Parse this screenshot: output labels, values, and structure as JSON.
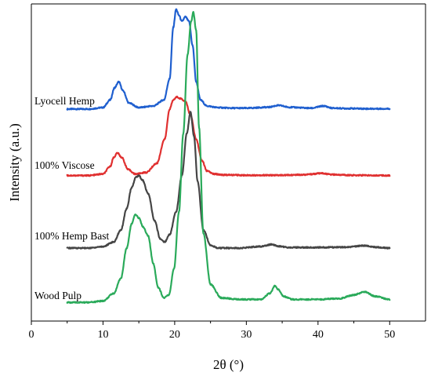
{
  "chart_data": {
    "type": "line",
    "title": "",
    "xlabel": "2θ (°)",
    "ylabel": "Intensity (a.u.)",
    "xlim": [
      0,
      55
    ],
    "xticks": [
      0,
      10,
      20,
      30,
      40,
      50
    ],
    "xtick_labels": [
      "0",
      "10",
      "20",
      "30",
      "40",
      "50"
    ],
    "yticks_shown": false,
    "grid": false,
    "legend": "labels placed beside each curve on the left",
    "series": [
      {
        "name": "Lyocell Hemp",
        "color": "#1f5fcf",
        "baseline": 0.66,
        "noise": 0.002,
        "x": [
          5,
          8,
          10,
          11,
          11.6,
          12.2,
          12.8,
          13.6,
          15,
          17,
          18.5,
          19.3,
          19.8,
          20.2,
          20.6,
          21,
          21.5,
          22,
          22.5,
          23,
          23.6,
          24.5,
          26,
          28,
          30,
          33,
          34.5,
          36,
          39,
          40.8,
          42,
          44,
          47,
          50
        ],
        "y": [
          0.66,
          0.66,
          0.665,
          0.69,
          0.73,
          0.75,
          0.72,
          0.68,
          0.665,
          0.67,
          0.69,
          0.76,
          0.93,
          0.99,
          0.97,
          0.95,
          0.965,
          0.95,
          0.87,
          0.75,
          0.69,
          0.67,
          0.665,
          0.663,
          0.663,
          0.666,
          0.672,
          0.666,
          0.663,
          0.67,
          0.663,
          0.662,
          0.661,
          0.661
        ]
      },
      {
        "name": "100% Viscose",
        "color": "#e03030",
        "baseline": 0.44,
        "noise": 0.002,
        "x": [
          5,
          8,
          10,
          11,
          11.5,
          12,
          12.6,
          13.5,
          14.5,
          16,
          17.5,
          18.6,
          19.3,
          19.8,
          20.3,
          20.8,
          21.5,
          22.2,
          23,
          23.8,
          24.5,
          25.5,
          27,
          30,
          35,
          38,
          40.5,
          42,
          45,
          50
        ],
        "y": [
          0.44,
          0.44,
          0.445,
          0.47,
          0.5,
          0.515,
          0.5,
          0.46,
          0.445,
          0.45,
          0.48,
          0.56,
          0.66,
          0.69,
          0.7,
          0.695,
          0.685,
          0.64,
          0.56,
          0.49,
          0.455,
          0.445,
          0.442,
          0.441,
          0.441,
          0.443,
          0.447,
          0.443,
          0.441,
          0.44
        ]
      },
      {
        "name": "100% Hemp Bast",
        "color": "#454545",
        "baseline": 0.2,
        "noise": 0.002,
        "x": [
          5,
          8,
          10,
          11.5,
          12.5,
          13.3,
          14,
          14.6,
          15,
          15.5,
          16.3,
          17.2,
          18,
          18.6,
          19.3,
          20.2,
          21,
          21.7,
          22.2,
          22.7,
          23.2,
          24,
          25,
          26,
          29,
          32,
          33.5,
          34.5,
          36,
          40,
          44,
          46.5,
          48,
          50
        ],
        "y": [
          0.2,
          0.2,
          0.205,
          0.22,
          0.26,
          0.33,
          0.4,
          0.435,
          0.44,
          0.425,
          0.38,
          0.29,
          0.23,
          0.22,
          0.245,
          0.32,
          0.44,
          0.58,
          0.65,
          0.57,
          0.42,
          0.26,
          0.21,
          0.2,
          0.2,
          0.205,
          0.212,
          0.206,
          0.202,
          0.202,
          0.203,
          0.208,
          0.203,
          0.2
        ]
      },
      {
        "name": "Wood Pulp",
        "color": "#2aaa5a",
        "baseline": 0.02,
        "noise": 0.002,
        "x": [
          5,
          8,
          10,
          11.5,
          12.5,
          13.3,
          14,
          14.5,
          15,
          15.6,
          16.3,
          17,
          17.7,
          18.5,
          19.2,
          19.9,
          20.6,
          21.2,
          21.8,
          22.3,
          22.6,
          23,
          23.4,
          24,
          25,
          26.5,
          29,
          32,
          33.3,
          34,
          34.5,
          35.2,
          36.5,
          40,
          43,
          45,
          46.5,
          48,
          50
        ],
        "y": [
          0.02,
          0.02,
          0.025,
          0.05,
          0.1,
          0.2,
          0.28,
          0.31,
          0.3,
          0.27,
          0.24,
          0.15,
          0.07,
          0.035,
          0.045,
          0.13,
          0.32,
          0.58,
          0.84,
          0.95,
          0.98,
          0.92,
          0.6,
          0.25,
          0.08,
          0.035,
          0.03,
          0.03,
          0.05,
          0.075,
          0.062,
          0.04,
          0.03,
          0.03,
          0.033,
          0.045,
          0.055,
          0.04,
          0.03
        ]
      }
    ]
  }
}
